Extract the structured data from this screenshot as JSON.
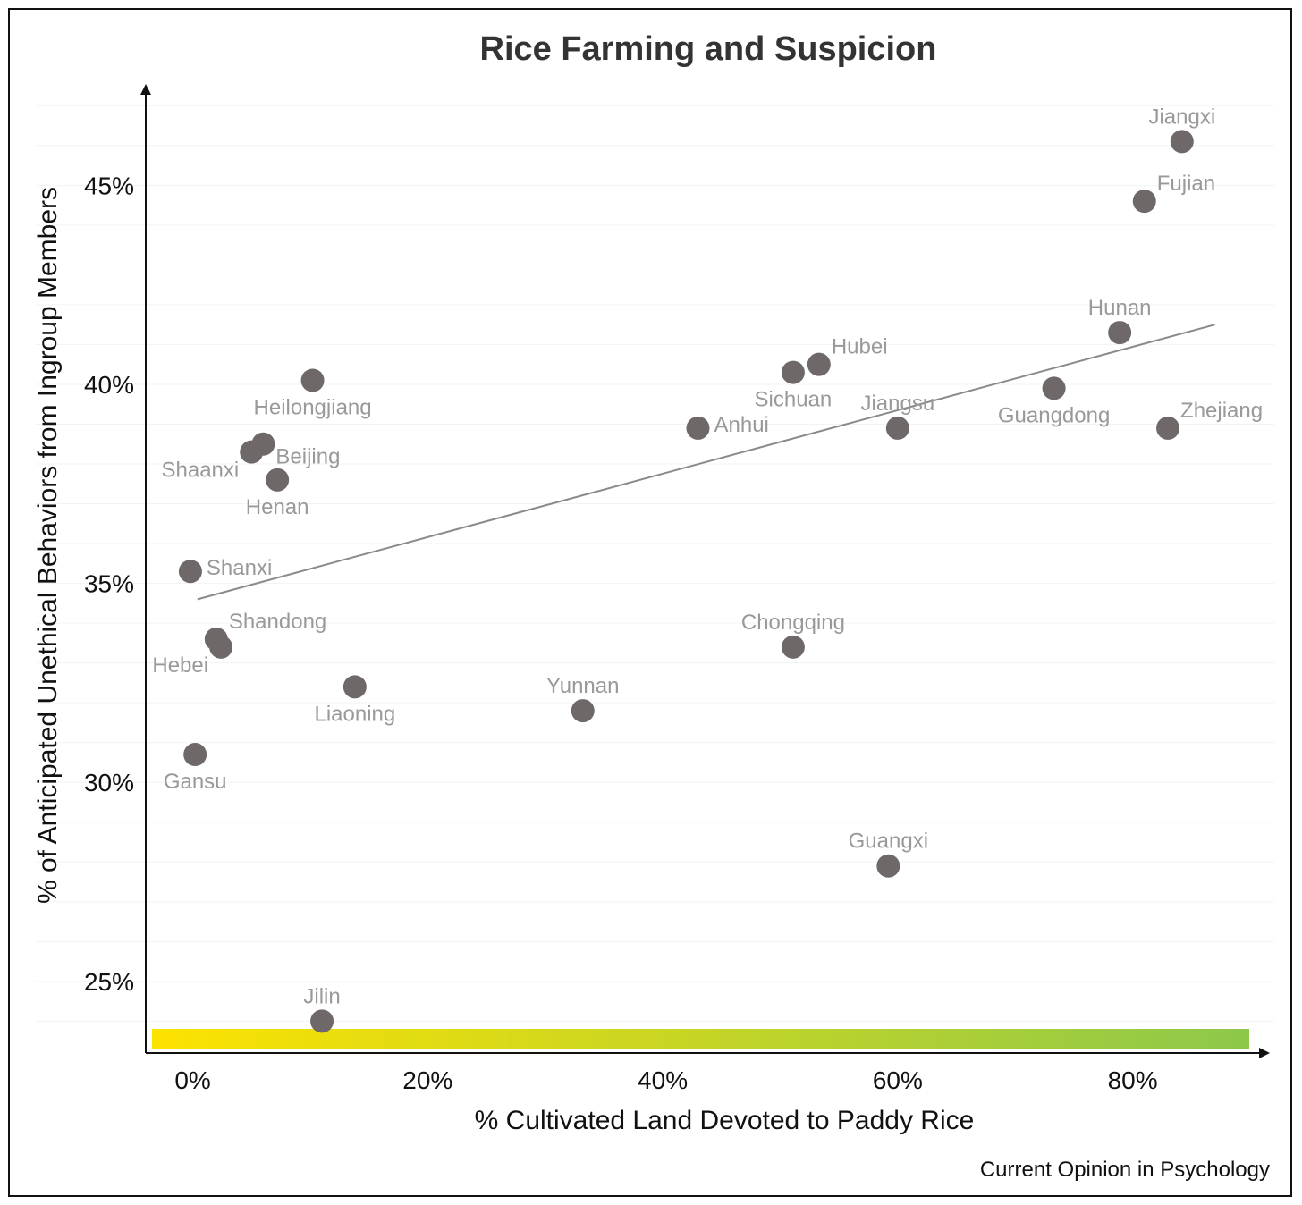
{
  "chart_data": {
    "type": "scatter",
    "title": "Rice Farming and Suspicion",
    "xlabel": "% Cultivated Land Devoted to Paddy Rice",
    "ylabel": "% of Anticipated Unethical Behaviors from Ingroup Members",
    "credit": "Current Opinion in Psychology",
    "xlim": [
      -0.04,
      0.9
    ],
    "ylim": [
      23.2,
      47.5
    ],
    "x_ticks": [
      {
        "value": 0.0,
        "label": "0%"
      },
      {
        "value": 0.2,
        "label": "20%"
      },
      {
        "value": 0.4,
        "label": "40%"
      },
      {
        "value": 0.6,
        "label": "60%"
      },
      {
        "value": 0.8,
        "label": "80%"
      }
    ],
    "y_ticks": [
      {
        "value": 25,
        "label": "25%"
      },
      {
        "value": 30,
        "label": "30%"
      },
      {
        "value": 35,
        "label": "35%"
      },
      {
        "value": 40,
        "label": "40%"
      },
      {
        "value": 45,
        "label": "45%"
      }
    ],
    "grid": true,
    "colorbar": {
      "from": "#fde200",
      "to": "#8dc84b"
    },
    "point_color": "#6e6869",
    "label_color": "#999999",
    "trend_line": {
      "x1": 0.004,
      "y1": 34.6,
      "x2": 0.87,
      "y2": 41.5
    },
    "points": [
      {
        "name": "Jiangxi",
        "x": 0.842,
        "y": 46.1,
        "label_pos": "n"
      },
      {
        "name": "Fujian",
        "x": 0.81,
        "y": 44.6,
        "label_pos": "ne"
      },
      {
        "name": "Hunan",
        "x": 0.789,
        "y": 41.3,
        "label_pos": "n"
      },
      {
        "name": "Hubei",
        "x": 0.533,
        "y": 40.5,
        "label_pos": "ne"
      },
      {
        "name": "Sichuan",
        "x": 0.511,
        "y": 40.3,
        "label_pos": "s"
      },
      {
        "name": "Guangdong",
        "x": 0.733,
        "y": 39.9,
        "label_pos": "s"
      },
      {
        "name": "Heilongjiang",
        "x": 0.102,
        "y": 40.1,
        "label_pos": "s"
      },
      {
        "name": "Jiangsu",
        "x": 0.6,
        "y": 38.9,
        "label_pos": "n"
      },
      {
        "name": "Zhejiang",
        "x": 0.83,
        "y": 38.9,
        "label_pos": "ne"
      },
      {
        "name": "Anhui",
        "x": 0.43,
        "y": 38.9,
        "label_pos": "e"
      },
      {
        "name": "Beijing",
        "x": 0.06,
        "y": 38.5,
        "label_pos": "se"
      },
      {
        "name": "Shaanxi",
        "x": 0.05,
        "y": 38.3,
        "label_pos": "sw"
      },
      {
        "name": "Henan",
        "x": 0.072,
        "y": 37.6,
        "label_pos": "s"
      },
      {
        "name": "Shanxi",
        "x": -0.002,
        "y": 35.3,
        "label_pos": "e"
      },
      {
        "name": "Shandong",
        "x": 0.02,
        "y": 33.6,
        "label_pos": "ne"
      },
      {
        "name": "Hebei",
        "x": 0.024,
        "y": 33.4,
        "label_pos": "sw"
      },
      {
        "name": "Chongqing",
        "x": 0.511,
        "y": 33.4,
        "label_pos": "n"
      },
      {
        "name": "Liaoning",
        "x": 0.138,
        "y": 32.4,
        "label_pos": "s"
      },
      {
        "name": "Yunnan",
        "x": 0.332,
        "y": 31.8,
        "label_pos": "n"
      },
      {
        "name": "Gansu",
        "x": 0.002,
        "y": 30.7,
        "label_pos": "s"
      },
      {
        "name": "Guangxi",
        "x": 0.592,
        "y": 27.9,
        "label_pos": "n"
      },
      {
        "name": "Jilin",
        "x": 0.11,
        "y": 24.0,
        "label_pos": "n"
      }
    ]
  }
}
